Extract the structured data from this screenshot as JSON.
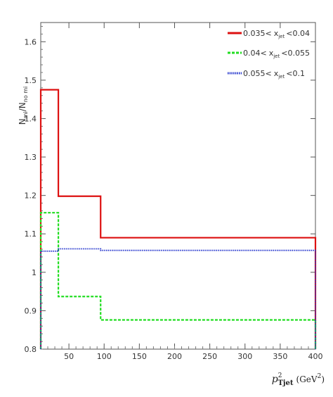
{
  "chart_data": {
    "type": "line",
    "step": true,
    "xlabel_main": "p",
    "xlabel_sup": "2",
    "xlabel_sub": "Tjet",
    "xlabel_unit_open": "(GeV",
    "xlabel_unit_sup": "2",
    "xlabel_unit_close": ")",
    "ylabel_num": "N",
    "ylabel_num_sub": "mi",
    "ylabel_slash": "/",
    "ylabel_den": "N",
    "ylabel_den_sub": "no mi",
    "xlim": [
      10,
      400
    ],
    "ylim": [
      0.8,
      1.65
    ],
    "x_ticks": [
      50,
      100,
      150,
      200,
      250,
      300,
      350,
      400
    ],
    "x_tick_labels": [
      "50",
      "100",
      "150",
      "200",
      "250",
      "300",
      "350",
      "400"
    ],
    "y_ticks": [
      0.8,
      0.9,
      1.0,
      1.1,
      1.2,
      1.3,
      1.4,
      1.5,
      1.6
    ],
    "y_tick_labels": [
      "0.8",
      "0.9",
      "1",
      "1.1",
      "1.2",
      "1.3",
      "1.4",
      "1.5",
      "1.6"
    ],
    "grid": false,
    "legend_position": "top-right",
    "bin_edges": [
      10,
      35,
      95,
      400
    ],
    "series": [
      {
        "name_pre": "0.035<",
        "name_var": "x",
        "name_sub": "jet",
        "name_post": "<0.04",
        "color": "#dd1111",
        "dash": "solid",
        "values": [
          1.475,
          1.198,
          1.09
        ]
      },
      {
        "name_pre": "0.04<",
        "name_var": "x",
        "name_sub": "jet",
        "name_post": "<0.055",
        "color": "#22dd22",
        "dash": "dashed",
        "values": [
          1.155,
          0.937,
          0.876
        ]
      },
      {
        "name_pre": "0.055<",
        "name_var": "x",
        "name_sub": "jet",
        "name_post": "<0.1",
        "color": "#2233cc",
        "dash": "dotted",
        "values": [
          1.055,
          1.061,
          1.057
        ]
      }
    ]
  }
}
